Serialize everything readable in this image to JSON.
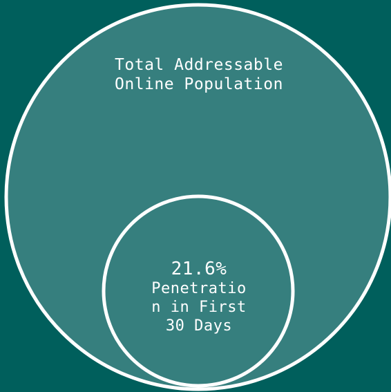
{
  "diagram": {
    "type": "nested-circles",
    "colors": {
      "background": "#005f5c",
      "circle_fill": "#367f7e",
      "circle_stroke": "#ffffff",
      "text": "#ffffff"
    },
    "outer": {
      "label": "Total Addressable\nOnline Population"
    },
    "inner": {
      "value": "21.6%",
      "label": "Penetratio\nn in First\n30 Days"
    }
  }
}
